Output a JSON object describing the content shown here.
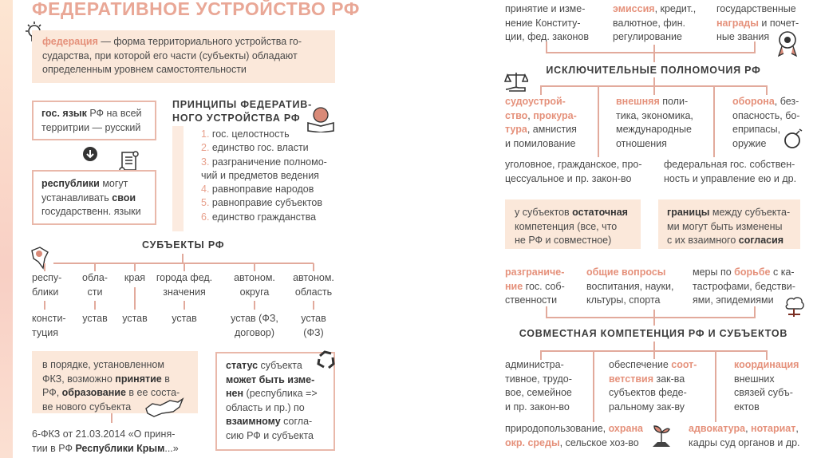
{
  "left_page": {
    "title": "ФЕДЕРАТИВНОЕ УСТРОЙСТВО РФ",
    "definition": [
      [
        {
          "t": "федерация",
          "s": "h"
        },
        {
          "t": " — форма территориального устройства го-",
          "s": ""
        }
      ],
      [
        {
          "t": "сударства, при которой его части (субъекты) обладают",
          "s": ""
        }
      ],
      [
        {
          "t": "определенным уровнем самостоятельности",
          "s": ""
        }
      ]
    ],
    "language_box": [
      [
        {
          "t": "гос. язык",
          "s": "b"
        },
        {
          "t": " РФ на всей",
          "s": ""
        }
      ],
      [
        {
          "t": "территрии — русский",
          "s": ""
        }
      ]
    ],
    "republics_box": [
      [
        {
          "t": "республики",
          "s": "b"
        },
        {
          "t": " могут",
          "s": ""
        }
      ],
      [
        {
          "t": "устанавливать ",
          "s": ""
        },
        {
          "t": "свои",
          "s": "b"
        }
      ],
      [
        {
          "t": "государственн. языки",
          "s": ""
        }
      ]
    ],
    "principles": {
      "heading": [
        "ПРИНЦИПЫ ФЕДЕРАТИВ-",
        "НОГО УСТРОЙСТВА РФ"
      ],
      "items": [
        [
          {
            "t": "1.",
            "s": "n"
          },
          {
            "t": " гос. целостность",
            "s": ""
          }
        ],
        [
          {
            "t": "2.",
            "s": "n"
          },
          {
            "t": " единство гос. власти",
            "s": ""
          }
        ],
        [
          {
            "t": "3.",
            "s": "n"
          },
          {
            "t": " разграничение полномо-",
            "s": ""
          }
        ],
        [
          {
            "t": "чий и предметов ведения",
            "s": ""
          }
        ],
        [
          {
            "t": "4.",
            "s": "n"
          },
          {
            "t": " равноправие народов",
            "s": ""
          }
        ],
        [
          {
            "t": "5.",
            "s": "n"
          },
          {
            "t": " равноправие субъектов",
            "s": ""
          }
        ],
        [
          {
            "t": "6.",
            "s": "n"
          },
          {
            "t": " единство гражданства",
            "s": ""
          }
        ]
      ]
    },
    "subjects": {
      "heading": "СУБЪЕКТЫ РФ",
      "columns": [
        {
          "type": [
            "респу-",
            "блики"
          ],
          "law": [
            "консти-",
            "туция"
          ]
        },
        {
          "type": [
            "обла-",
            "сти"
          ],
          "law": [
            "устав"
          ]
        },
        {
          "type": [
            "края"
          ],
          "law": [
            "устав"
          ]
        },
        {
          "type": [
            "города фед.",
            "значения"
          ],
          "law": [
            "устав"
          ]
        },
        {
          "type": [
            "автоном.",
            "округа"
          ],
          "law": [
            "устав (ФЗ,",
            "договор)"
          ]
        },
        {
          "type": [
            "автоном.",
            "область"
          ],
          "law": [
            "устав",
            "(ФЗ)"
          ]
        }
      ]
    },
    "admission_box": [
      [
        {
          "t": "в порядке, установленном",
          "s": ""
        }
      ],
      [
        {
          "t": "ФКЗ, возможно ",
          "s": ""
        },
        {
          "t": "принятие",
          "s": "b"
        },
        {
          "t": " в",
          "s": ""
        }
      ],
      [
        {
          "t": "РФ, ",
          "s": ""
        },
        {
          "t": "образование",
          "s": "b"
        },
        {
          "t": " в ее соста-",
          "s": ""
        }
      ],
      [
        {
          "t": "ве нового субъекта",
          "s": ""
        }
      ]
    ],
    "crimea_law": [
      [
        {
          "t": "6-ФКЗ от 21.03.2014 «О приня-",
          "s": ""
        }
      ],
      [
        {
          "t": "тии в РФ ",
          "s": ""
        },
        {
          "t": "Республики Крым",
          "s": "b"
        },
        {
          "t": "...»",
          "s": ""
        }
      ]
    ],
    "status_box": [
      [
        {
          "t": "статус",
          "s": "b"
        },
        {
          "t": " субъекта",
          "s": ""
        }
      ],
      [
        {
          "t": "может быть изме-",
          "s": "b"
        }
      ],
      [
        {
          "t": "нен",
          "s": "b"
        },
        {
          "t": " (республика =>",
          "s": ""
        }
      ],
      [
        {
          "t": "область и пр.) по",
          "s": ""
        }
      ],
      [
        {
          "t": "взаимному",
          "s": "b"
        },
        {
          "t": " согла-",
          "s": ""
        }
      ],
      [
        {
          "t": "сию РФ и субъекта",
          "s": ""
        }
      ]
    ]
  },
  "right_page": {
    "top_items": [
      [
        [
          {
            "t": "принятие и изме-",
            "s": ""
          }
        ],
        [
          {
            "t": "нение Конститу-",
            "s": ""
          }
        ],
        [
          {
            "t": "ции, фед. законов",
            "s": ""
          }
        ]
      ],
      [
        [
          {
            "t": "эмиссия",
            "s": "h"
          },
          {
            "t": ", кредит.,",
            "s": ""
          }
        ],
        [
          {
            "t": "валютное, фин.",
            "s": ""
          }
        ],
        [
          {
            "t": "регулирование",
            "s": ""
          }
        ]
      ],
      [
        [
          {
            "t": "государственные",
            "s": ""
          }
        ],
        [
          {
            "t": "награды",
            "s": "h"
          },
          {
            "t": " и почет-",
            "s": ""
          }
        ],
        [
          {
            "t": "ные звания",
            "s": ""
          }
        ]
      ]
    ],
    "exclusive_heading": "ИСКЛЮЧИТЕЛЬНЫЕ ПОЛНОМОЧИЯ РФ",
    "exclusive_items": [
      [
        [
          {
            "t": "судоустрой-",
            "s": "h"
          }
        ],
        [
          {
            "t": "ство",
            "s": "h"
          },
          {
            "t": ", ",
            "s": ""
          },
          {
            "t": "прокура-",
            "s": "h"
          }
        ],
        [
          {
            "t": "тура",
            "s": "h"
          },
          {
            "t": ", амнистия",
            "s": ""
          }
        ],
        [
          {
            "t": "и помилование",
            "s": ""
          }
        ]
      ],
      [
        [
          {
            "t": "внешняя",
            "s": "h"
          },
          {
            "t": " поли-",
            "s": ""
          }
        ],
        [
          {
            "t": "тика, экономика,",
            "s": ""
          }
        ],
        [
          {
            "t": "международные",
            "s": ""
          }
        ],
        [
          {
            "t": "отношения",
            "s": ""
          }
        ]
      ],
      [
        [
          {
            "t": "оборона",
            "s": "h"
          },
          {
            "t": ", без-",
            "s": ""
          }
        ],
        [
          {
            "t": "опасность, бо-",
            "s": ""
          }
        ],
        [
          {
            "t": "еприпасы,",
            "s": ""
          }
        ],
        [
          {
            "t": "оружие",
            "s": ""
          }
        ]
      ],
      [
        [
          {
            "t": "уголовное, гражданское, про-",
            "s": ""
          }
        ],
        [
          {
            "t": "цессуальное и пр. закон-во",
            "s": ""
          }
        ]
      ],
      [
        [
          {
            "t": "федеральная гос. собствен-",
            "s": ""
          }
        ],
        [
          {
            "t": "ность и управление ею и др.",
            "s": ""
          }
        ]
      ]
    ],
    "residual_box": [
      [
        {
          "t": "у субъектов ",
          "s": ""
        },
        {
          "t": "остаточная",
          "s": "b"
        }
      ],
      [
        {
          "t": "компетенция (все, что",
          "s": ""
        }
      ],
      [
        {
          "t": "не РФ и совместное)",
          "s": ""
        }
      ]
    ],
    "borders_box": [
      [
        {
          "t": "границы",
          "s": "b"
        },
        {
          "t": " между субъекта-",
          "s": ""
        }
      ],
      [
        {
          "t": "ми могут быть изменены",
          "s": ""
        }
      ],
      [
        {
          "t": "с их взаимного ",
          "s": ""
        },
        {
          "t": "согласия",
          "s": "b"
        }
      ]
    ],
    "joint_top_items": [
      [
        [
          {
            "t": "разграниче-",
            "s": "h"
          }
        ],
        [
          {
            "t": "ние",
            "s": "h"
          },
          {
            "t": " гос. соб-",
            "s": ""
          }
        ],
        [
          {
            "t": "ственности",
            "s": ""
          }
        ]
      ],
      [
        [
          {
            "t": "общие вопросы",
            "s": "h"
          }
        ],
        [
          {
            "t": "воспитания, науки,",
            "s": ""
          }
        ],
        [
          {
            "t": "кльтуры, спорта",
            "s": ""
          }
        ]
      ],
      [
        [
          {
            "t": "меры по ",
            "s": ""
          },
          {
            "t": "борьбе",
            "s": "h"
          },
          {
            "t": " с ка-",
            "s": ""
          }
        ],
        [
          {
            "t": "тастрофами, бедстви-",
            "s": ""
          }
        ],
        [
          {
            "t": "ями, эпидемиями",
            "s": ""
          }
        ]
      ]
    ],
    "joint_heading": "СОВМЕСТНАЯ КОМПЕТЕНЦИЯ РФ И СУБЪЕКТОВ",
    "joint_items": [
      [
        [
          {
            "t": "администра-",
            "s": ""
          }
        ],
        [
          {
            "t": "тивное, трудо-",
            "s": ""
          }
        ],
        [
          {
            "t": "вое, семейное",
            "s": ""
          }
        ],
        [
          {
            "t": "и пр. закон-во",
            "s": ""
          }
        ]
      ],
      [
        [
          {
            "t": "обеспечение ",
            "s": ""
          },
          {
            "t": "соот-",
            "s": "h"
          }
        ],
        [
          {
            "t": "ветствия",
            "s": "h"
          },
          {
            "t": " зак-ва",
            "s": ""
          }
        ],
        [
          {
            "t": "субъектов феде-",
            "s": ""
          }
        ],
        [
          {
            "t": "ральному зак-ву",
            "s": ""
          }
        ]
      ],
      [
        [
          {
            "t": "координация",
            "s": "h"
          }
        ],
        [
          {
            "t": "внешних",
            "s": ""
          }
        ],
        [
          {
            "t": "связей субъ-",
            "s": ""
          }
        ],
        [
          {
            "t": "ектов",
            "s": ""
          }
        ]
      ],
      [
        [
          {
            "t": "природопользование, ",
            "s": ""
          },
          {
            "t": "охрана",
            "s": "h"
          }
        ],
        [
          {
            "t": "окр. среды",
            "s": "h"
          },
          {
            "t": ", сельское хоз-во",
            "s": ""
          }
        ]
      ],
      [
        [
          {
            "t": "адвокатура",
            "s": "h"
          },
          {
            "t": ", ",
            "s": ""
          },
          {
            "t": "нотариат",
            "s": "h"
          },
          {
            "t": ",",
            "s": ""
          }
        ],
        [
          {
            "t": "кадры суд органов и др.",
            "s": ""
          }
        ]
      ]
    ]
  },
  "colors": {
    "accent": "#e5917b",
    "box_fill": "#fbe8da",
    "border": "#e9b8aa",
    "line": "#e2aa9c",
    "title": "#e9a796"
  }
}
